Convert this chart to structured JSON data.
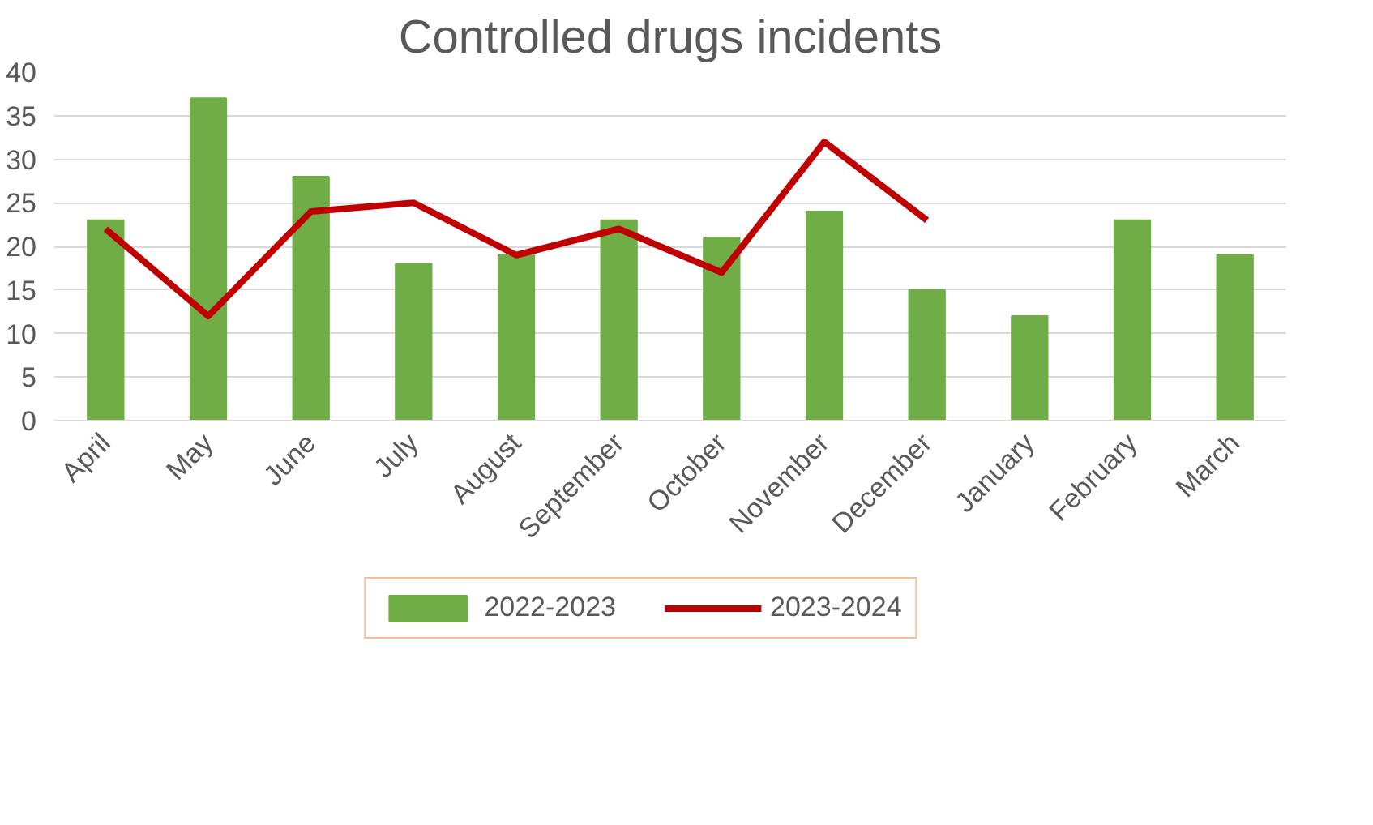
{
  "chart_data": {
    "type": "bar",
    "title": "Controlled drugs incidents",
    "categories": [
      "April",
      "May",
      "June",
      "July",
      "August",
      "September",
      "October",
      "November",
      "December",
      "January",
      "February",
      "March"
    ],
    "series": [
      {
        "name": "2022-2023",
        "color": "#70ad47",
        "values": [
          23,
          37,
          28,
          18,
          19,
          23,
          21,
          24,
          15,
          12,
          23,
          19
        ]
      },
      {
        "name": "2023-2024",
        "type": "line",
        "color": "#c00000",
        "values": [
          22,
          12,
          24,
          25,
          19,
          22,
          17,
          32,
          23,
          null,
          null,
          null
        ]
      }
    ],
    "ylim": [
      0,
      40
    ],
    "yticks": [
      0,
      5,
      10,
      15,
      20,
      25,
      30,
      35,
      40
    ],
    "grid": "y",
    "legend": "bottom"
  }
}
